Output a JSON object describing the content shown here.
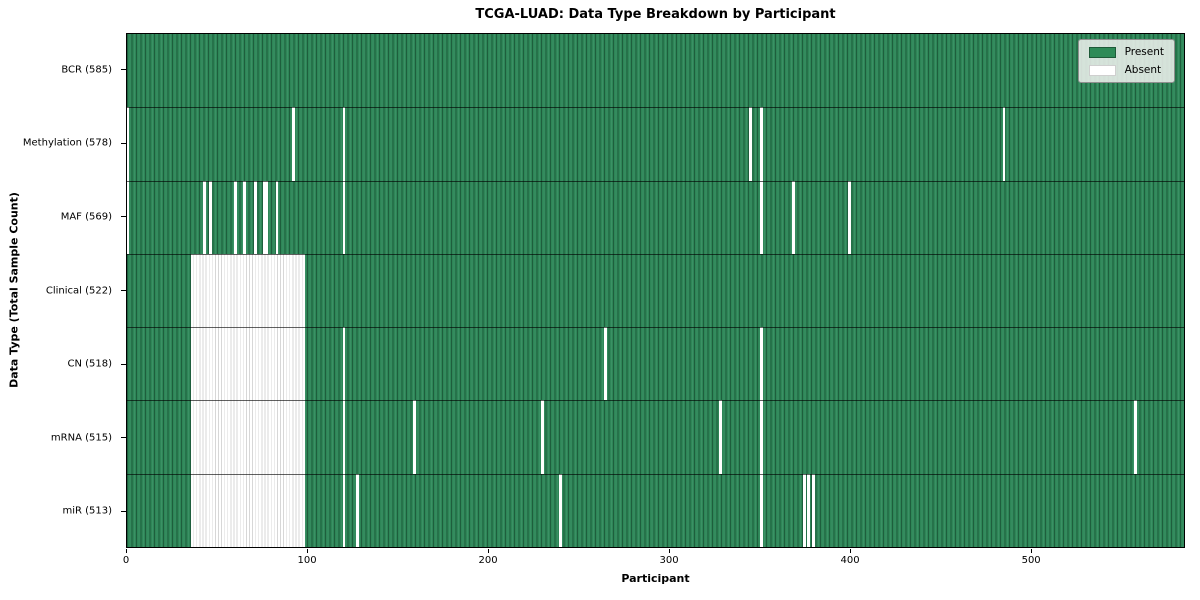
{
  "title": "TCGA-LUAD: Data Type Breakdown by Participant",
  "axes": {
    "x_label": "Participant",
    "y_label": "Data Type (Total Sample Count)",
    "x_ticks": [
      0,
      100,
      200,
      300,
      400,
      500
    ],
    "x_max": 585
  },
  "legend": {
    "items": [
      {
        "label": "Present",
        "color": "#2e8b57"
      },
      {
        "label": "Absent",
        "color": "#ffffff"
      }
    ]
  },
  "chart_data": {
    "type": "heatmap",
    "x_max": 585,
    "x_axis": "participant index (0-585)",
    "cell_values": "binary presence/absence of each data type per participant",
    "colors": {
      "present": "#2e8657",
      "present_light": "#3b9065",
      "present_edge": "#1e5e3d",
      "absent": "#ffffff",
      "absent_stripe": "#d7d7d7"
    },
    "rows": [
      {
        "label": "BCR (585)",
        "data_type": "BCR",
        "total_samples": 585,
        "absent_ranges": []
      },
      {
        "label": "Methylation (578)",
        "data_type": "Methylation",
        "total_samples": 578,
        "absent_ranges": [
          [
            0,
            1
          ],
          [
            91.3,
            92.8
          ],
          [
            119.3,
            120.8
          ],
          [
            344.3,
            345.7
          ],
          [
            350.6,
            352.1
          ],
          [
            484.8,
            486.2
          ]
        ]
      },
      {
        "label": "MAF (569)",
        "data_type": "MAF",
        "total_samples": 569,
        "absent_ranges": [
          [
            0,
            1
          ],
          [
            42.3,
            43.8
          ],
          [
            45.6,
            47.2
          ],
          [
            59.3,
            60.8
          ],
          [
            64.3,
            65.8
          ],
          [
            70.3,
            71.8
          ],
          [
            75.3,
            77.8
          ],
          [
            82.3,
            83.8
          ],
          [
            119.3,
            120.8
          ],
          [
            350.6,
            352.1
          ],
          [
            368.3,
            369.8
          ],
          [
            399.3,
            400.8
          ]
        ]
      },
      {
        "label": "Clinical (522)",
        "data_type": "Clinical",
        "total_samples": 522,
        "absent_ranges": [
          [
            35.5,
            98.5
          ]
        ]
      },
      {
        "label": "CN (518)",
        "data_type": "CN",
        "total_samples": 518,
        "absent_ranges": [
          [
            35.5,
            98.5
          ],
          [
            119.3,
            120.8
          ],
          [
            264.0,
            265.8
          ],
          [
            350.6,
            352.1
          ]
        ]
      },
      {
        "label": "mRNA (515)",
        "data_type": "mRNA",
        "total_samples": 515,
        "absent_ranges": [
          [
            35.5,
            98.5
          ],
          [
            119.3,
            120.8
          ],
          [
            158.3,
            159.8
          ],
          [
            229.3,
            230.8
          ],
          [
            327.8,
            329.3
          ],
          [
            350.6,
            352.1
          ],
          [
            557.2,
            558.8
          ]
        ]
      },
      {
        "label": "miR (513)",
        "data_type": "miR",
        "total_samples": 513,
        "absent_ranges": [
          [
            35.5,
            98.5
          ],
          [
            119.3,
            120.8
          ],
          [
            126.8,
            128.2
          ],
          [
            239.3,
            240.8
          ],
          [
            350.6,
            352.1
          ],
          [
            374.3,
            375.7
          ],
          [
            376.5,
            377.9
          ],
          [
            379.3,
            380.8
          ]
        ]
      }
    ]
  }
}
